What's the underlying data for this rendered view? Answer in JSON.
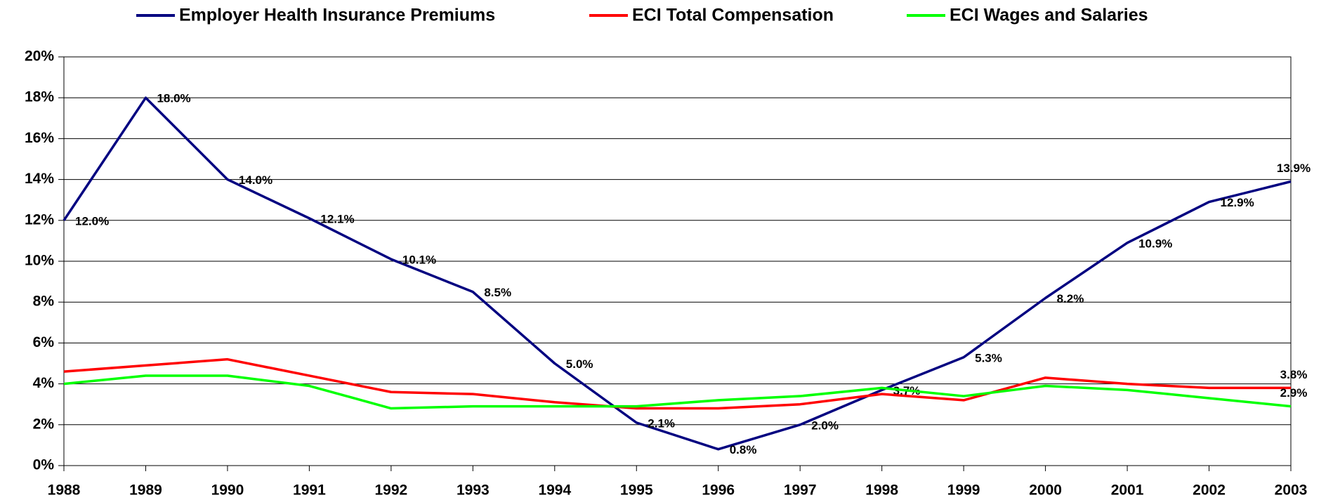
{
  "chart_data": {
    "type": "line",
    "categories": [
      "1988",
      "1989",
      "1990",
      "1991",
      "1992",
      "1993",
      "1994",
      "1995",
      "1996",
      "1997",
      "1998",
      "1999",
      "2000",
      "2001",
      "2002",
      "2003"
    ],
    "series": [
      {
        "name": "Employer Health Insurance Premiums",
        "color": "#000080",
        "values": [
          12.0,
          18.0,
          14.0,
          12.1,
          10.1,
          8.5,
          5.0,
          2.1,
          0.8,
          2.0,
          3.7,
          5.3,
          8.2,
          10.9,
          12.9,
          13.9
        ],
        "value_labels": [
          "12.0%",
          "18.0%",
          "14.0%",
          "12.1%",
          "10.1%",
          "8.5%",
          "5.0%",
          "2.1%",
          "0.8%",
          "2.0%",
          "3.7%",
          "5.3%",
          "8.2%",
          "10.9%",
          "12.9%",
          "13.9%"
        ]
      },
      {
        "name": "ECI Total Compensation",
        "color": "#ff0000",
        "values": [
          4.6,
          4.9,
          5.2,
          4.4,
          3.6,
          3.5,
          3.1,
          2.8,
          2.8,
          3.0,
          3.5,
          3.2,
          4.3,
          4.0,
          3.8,
          3.8
        ],
        "value_labels": [
          null,
          null,
          null,
          null,
          null,
          null,
          null,
          null,
          null,
          null,
          null,
          null,
          null,
          null,
          null,
          "3.8%"
        ]
      },
      {
        "name": "ECI Wages and Salaries",
        "color": "#00ff00",
        "values": [
          4.0,
          4.4,
          4.4,
          3.9,
          2.8,
          2.9,
          2.9,
          2.9,
          3.2,
          3.4,
          3.8,
          3.4,
          3.9,
          3.7,
          3.3,
          2.9
        ],
        "value_labels": [
          null,
          null,
          null,
          null,
          null,
          null,
          null,
          null,
          null,
          null,
          null,
          null,
          null,
          null,
          null,
          "2.9%"
        ]
      }
    ],
    "ylim": [
      0,
      20
    ],
    "yticks": [
      {
        "value": 0,
        "label": "0%"
      },
      {
        "value": 2,
        "label": "2%"
      },
      {
        "value": 4,
        "label": "4%"
      },
      {
        "value": 6,
        "label": "6%"
      },
      {
        "value": 8,
        "label": "8%"
      },
      {
        "value": 10,
        "label": "10%"
      },
      {
        "value": 12,
        "label": "12%"
      },
      {
        "value": 14,
        "label": "14%"
      },
      {
        "value": 16,
        "label": "16%"
      },
      {
        "value": 18,
        "label": "18%"
      },
      {
        "value": 20,
        "label": "20%"
      }
    ],
    "grid": true,
    "legend": "top"
  }
}
